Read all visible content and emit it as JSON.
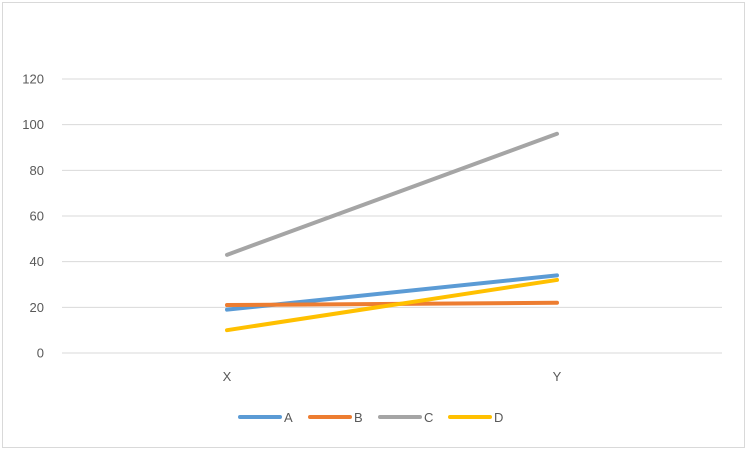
{
  "chart_data": {
    "type": "line",
    "categories": [
      "X",
      "Y"
    ],
    "series": [
      {
        "name": "A",
        "values": [
          19,
          34
        ],
        "color": "#5B9BD5"
      },
      {
        "name": "B",
        "values": [
          21,
          22
        ],
        "color": "#ED7D31"
      },
      {
        "name": "C",
        "values": [
          43,
          96
        ],
        "color": "#A5A5A5"
      },
      {
        "name": "D",
        "values": [
          10,
          32
        ],
        "color": "#FFC000"
      }
    ],
    "yticks": [
      "0",
      "20",
      "40",
      "60",
      "80",
      "100",
      "120"
    ],
    "ylim": [
      0,
      120
    ],
    "grid": true,
    "legend_position": "bottom",
    "title": "",
    "xlabel": "",
    "ylabel": ""
  }
}
